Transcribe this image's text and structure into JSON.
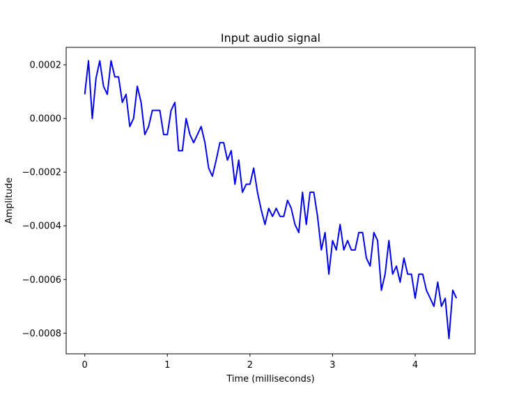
{
  "chart_data": {
    "type": "line",
    "title": "Input audio signal",
    "xlabel": "Time (milliseconds)",
    "ylabel": "Amplitude",
    "xlim": [
      -0.225,
      4.725
    ],
    "ylim": [
      -0.000877,
      0.000265
    ],
    "xticks": [
      0,
      1,
      2,
      3,
      4
    ],
    "xtick_labels": [
      "0",
      "1",
      "2",
      "3",
      "4"
    ],
    "yticks": [
      0.0002,
      0.0,
      -0.0002,
      -0.0004,
      -0.0006,
      -0.0008
    ],
    "ytick_labels": [
      "0.0002",
      "0.0000",
      "−0.0002",
      "−0.0004",
      "−0.0006",
      "−0.0008"
    ],
    "grid": false,
    "legend": "none",
    "series": [
      {
        "color": "#0000ee",
        "x": [
          0.0,
          0.045,
          0.091,
          0.136,
          0.182,
          0.227,
          0.273,
          0.318,
          0.364,
          0.409,
          0.455,
          0.5,
          0.545,
          0.591,
          0.636,
          0.682,
          0.727,
          0.773,
          0.818,
          0.864,
          0.909,
          0.955,
          1.0,
          1.045,
          1.091,
          1.136,
          1.182,
          1.227,
          1.273,
          1.318,
          1.364,
          1.409,
          1.455,
          1.5,
          1.545,
          1.591,
          1.636,
          1.682,
          1.727,
          1.773,
          1.818,
          1.864,
          1.909,
          1.955,
          2.0,
          2.045,
          2.091,
          2.136,
          2.182,
          2.227,
          2.273,
          2.318,
          2.364,
          2.409,
          2.455,
          2.5,
          2.545,
          2.591,
          2.636,
          2.682,
          2.727,
          2.773,
          2.818,
          2.864,
          2.909,
          2.955,
          3.0,
          3.045,
          3.091,
          3.136,
          3.182,
          3.227,
          3.273,
          3.318,
          3.364,
          3.409,
          3.455,
          3.5,
          3.545,
          3.591,
          3.636,
          3.682,
          3.727,
          3.773,
          3.818,
          3.864,
          3.909,
          3.955,
          4.0,
          4.045,
          4.091,
          4.136,
          4.182,
          4.227,
          4.273,
          4.318,
          4.364,
          4.409,
          4.455,
          4.5
        ],
        "y": [
          9e-05,
          0.000215,
          0.0,
          0.00015,
          0.000215,
          0.00012,
          9e-05,
          0.000215,
          0.000155,
          0.000155,
          6e-05,
          9e-05,
          -3e-05,
          0.0,
          0.00012,
          6e-05,
          -6e-05,
          -3e-05,
          3e-05,
          3e-05,
          3e-05,
          -6e-05,
          -6e-05,
          3e-05,
          6e-05,
          -0.00012,
          -0.00012,
          0.0,
          -6e-05,
          -9e-05,
          -6e-05,
          -3e-05,
          -9e-05,
          -0.000185,
          -0.000215,
          -0.000155,
          -9e-05,
          -9e-05,
          -0.000155,
          -0.00012,
          -0.000245,
          -0.000155,
          -0.000275,
          -0.000245,
          -0.000245,
          -0.000185,
          -0.000275,
          -0.00034,
          -0.000395,
          -0.000335,
          -0.000365,
          -0.000335,
          -0.000365,
          -0.000365,
          -0.000305,
          -0.000335,
          -0.000395,
          -0.000425,
          -0.000275,
          -0.000395,
          -0.000275,
          -0.000275,
          -0.000365,
          -0.00049,
          -0.000425,
          -0.00058,
          -0.000455,
          -0.00049,
          -0.000395,
          -0.00049,
          -0.000455,
          -0.00049,
          -0.00049,
          -0.000425,
          -0.000425,
          -0.00052,
          -0.00055,
          -0.000425,
          -0.000455,
          -0.00064,
          -0.00058,
          -0.000455,
          -0.00058,
          -0.00055,
          -0.00061,
          -0.00052,
          -0.00058,
          -0.00058,
          -0.00067,
          -0.00058,
          -0.00058,
          -0.00064,
          -0.00067,
          -0.0007,
          -0.00061,
          -0.0007,
          -0.00067,
          -0.00082,
          -0.00064,
          -0.00067
        ]
      }
    ]
  }
}
